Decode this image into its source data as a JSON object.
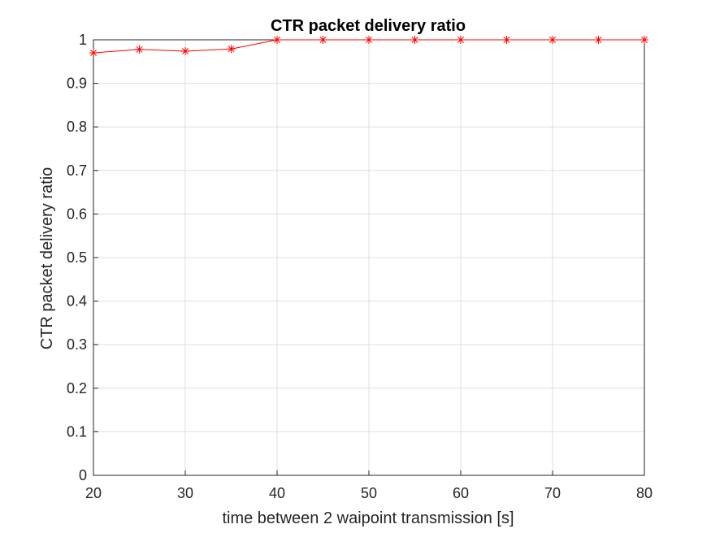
{
  "chart_data": {
    "type": "line",
    "title": "CTR packet delivery ratio",
    "xlabel": "time between 2 waipoint transmission [s]",
    "ylabel": "CTR packet delivery ratio",
    "xlim": [
      20,
      80
    ],
    "ylim": [
      0,
      1
    ],
    "grid": true,
    "x_ticks": [
      "20",
      "30",
      "40",
      "50",
      "60",
      "70",
      "80"
    ],
    "y_ticks": [
      "0",
      "0.1",
      "0.2",
      "0.3",
      "0.4",
      "0.5",
      "0.6",
      "0.7",
      "0.8",
      "0.9",
      "1"
    ],
    "series": [
      {
        "color": "#ff0000",
        "marker": "asterisk",
        "x": [
          20,
          25,
          30,
          35,
          40,
          45,
          50,
          55,
          60,
          65,
          70,
          75,
          80
        ],
        "y": [
          0.97,
          0.978,
          0.974,
          0.979,
          1.0,
          1.0,
          1.0,
          1.0,
          1.0,
          1.0,
          1.0,
          1.0,
          1.0
        ]
      }
    ]
  }
}
